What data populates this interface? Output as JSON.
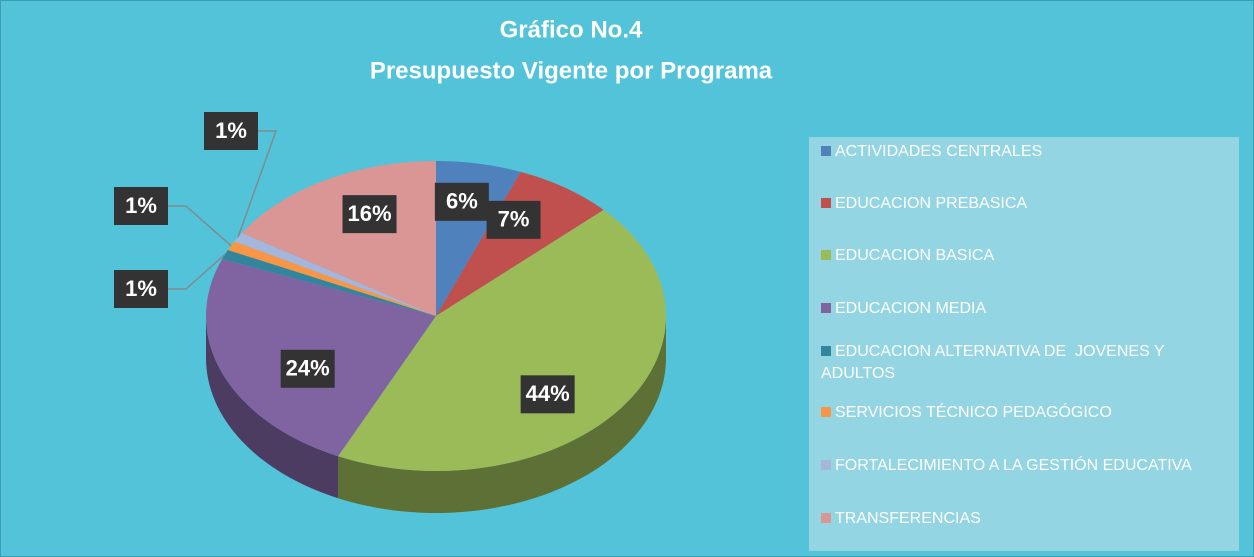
{
  "chart_data": {
    "type": "pie",
    "title": "Gráfico No.4",
    "subtitle": "Presupuesto Vigente por Programa",
    "categories": [
      "ACTIVIDADES CENTRALES",
      "EDUCACION PREBASICA",
      "EDUCACION BASICA",
      "EDUCACION MEDIA",
      "EDUCACION ALTERNATIVA DE  JOVENES Y ADULTOS",
      "SERVICIOS TÉCNICO PEDAGÓGICO",
      "FORTALECIMIENTO A LA GESTIÓN EDUCATIVA",
      "TRANSFERENCIAS"
    ],
    "values": [
      6,
      7,
      44,
      24,
      1,
      1,
      1,
      16
    ],
    "value_labels": [
      "6%",
      "7%",
      "44%",
      "24%",
      "1%",
      "1%",
      "1%",
      "16%"
    ],
    "colors": [
      "#4f81bd",
      "#c0504d",
      "#9bbb59",
      "#8064a2",
      "#31859c",
      "#f79646",
      "#a5b6dc",
      "#d99694"
    ],
    "legend": "right"
  }
}
